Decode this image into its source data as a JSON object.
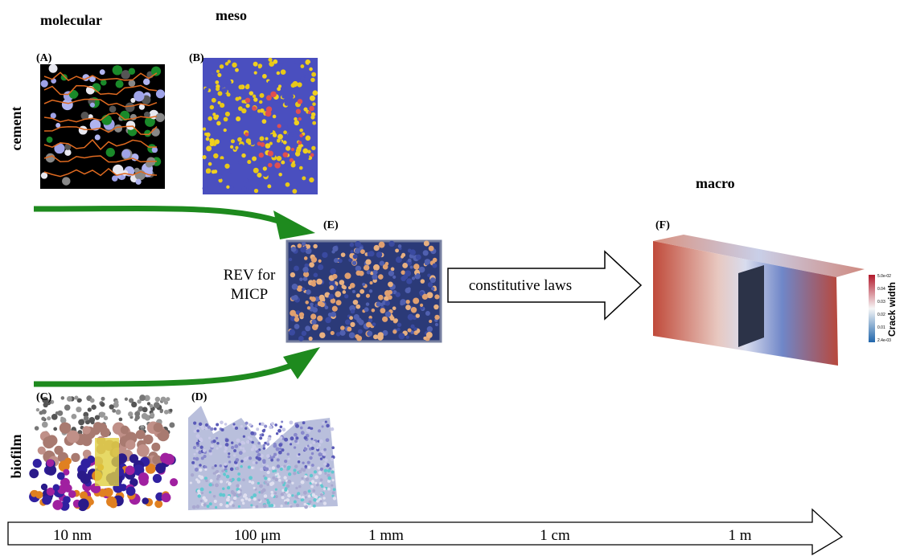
{
  "scales": {
    "molecular": "molecular",
    "meso": "meso",
    "macro": "macro"
  },
  "rows": {
    "cement": "cement",
    "biofilm": "biofilm"
  },
  "panels": {
    "A": "(A)",
    "B": "(B)",
    "C": "(C)",
    "D": "(D)",
    "E": "(E)",
    "F": "(F)"
  },
  "rev": {
    "lines": [
      "REV for",
      "MICP"
    ]
  },
  "arrow_label": "constitutive laws",
  "colorbar": {
    "title": "Crack width",
    "ticks": [
      "5.0e-02",
      "0.04",
      "0.03",
      "0.02",
      "0.01",
      "2.4e-03"
    ]
  },
  "axis": {
    "ticks": [
      "10 nm",
      "100 μm",
      "1 mm",
      "1 cm",
      "1 m"
    ]
  }
}
